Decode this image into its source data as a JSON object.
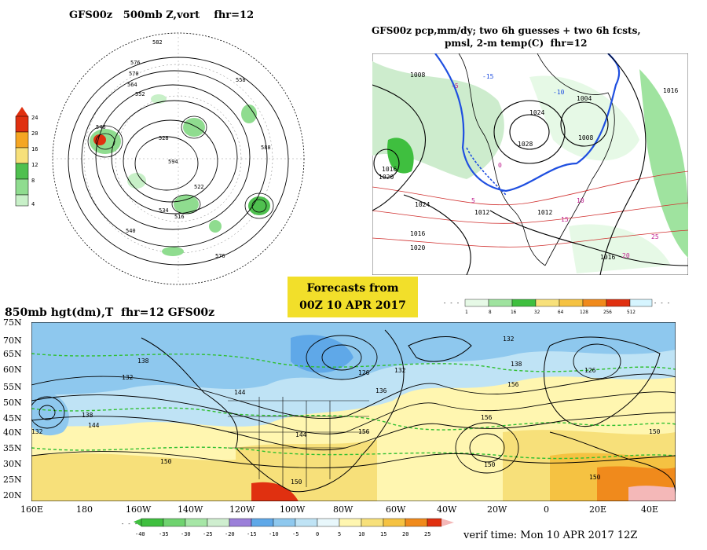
{
  "panel_vort": {
    "title": "GFS00z   500mb Z,vort    fhr=12",
    "scale_labels": [
      "24",
      "20",
      "16",
      "12",
      "8",
      "4"
    ],
    "scale_colors": [
      "#e03010",
      "#f5a623",
      "#f7e07a",
      "#4fc04f",
      "#8fdc8f",
      "#c8f0c8"
    ],
    "contour_labels": [
      "582",
      "576",
      "570",
      "564",
      "558",
      "552",
      "546",
      "540",
      "534",
      "528",
      "522",
      "516",
      "594",
      "588",
      "576"
    ]
  },
  "panel_precip": {
    "title_line1": "GFS00z pcp,mm/dy; two 6h guesses + two 6h fcsts,",
    "title_line2": "pmsl, 2-m temp(C)  fhr=12",
    "scale_labels": [
      "1",
      "8",
      "16",
      "32",
      "64",
      "128",
      "256",
      "512"
    ],
    "scale_colors": [
      "#e6f9e6",
      "#9fe39f",
      "#3fbf3f",
      "#f7e07a",
      "#f5c242",
      "#f08a1c",
      "#e03010",
      "#d6f5ff"
    ],
    "isobar_labels": [
      "1008",
      "1016",
      "1020",
      "1024",
      "1012",
      "1016",
      "1020",
      "1024",
      "1012",
      "1016",
      "1028",
      "1008",
      "1004",
      "1016"
    ],
    "temp_labels": [
      "-15",
      "-10",
      "-5",
      "0",
      "5",
      "10",
      "15",
      "20",
      "25"
    ]
  },
  "banner": {
    "line1": "Forecasts from",
    "line2": "00Z 10 APR 2017"
  },
  "panel_850": {
    "title": "850mb hgt(dm),T  fhr=12 GFS00z",
    "lat_labels": [
      "75N",
      "70N",
      "65N",
      "60N",
      "55N",
      "50N",
      "45N",
      "40N",
      "35N",
      "30N",
      "25N",
      "20N"
    ],
    "lon_labels": [
      "160E",
      "180",
      "160W",
      "140W",
      "120W",
      "100W",
      "80W",
      "60W",
      "40W",
      "20W",
      "0",
      "20E",
      "40E"
    ],
    "contour_labels": [
      "138",
      "132",
      "144",
      "150",
      "126",
      "132",
      "136",
      "144",
      "150",
      "156",
      "156",
      "150",
      "126",
      "132",
      "138",
      "144",
      "150",
      "156",
      "150",
      "132",
      "138",
      "138",
      "144",
      "150"
    ],
    "scale_labels": [
      "-40",
      "-35",
      "-30",
      "-25",
      "-20",
      "-15",
      "-10",
      "-5",
      "0",
      "5",
      "10",
      "15",
      "20",
      "25"
    ],
    "scale_colors": [
      "#3fbf3f",
      "#6fd36f",
      "#a6e6a6",
      "#cfeecf",
      "#9b7fd9",
      "#5fa8e8",
      "#8ec8ee",
      "#bfe3f5",
      "#e8f7fb",
      "#fff6b0",
      "#f7e07a",
      "#f5c242",
      "#f08a1c",
      "#e03010"
    ]
  },
  "verif": "verif time: Mon 10 APR 2017 12Z"
}
